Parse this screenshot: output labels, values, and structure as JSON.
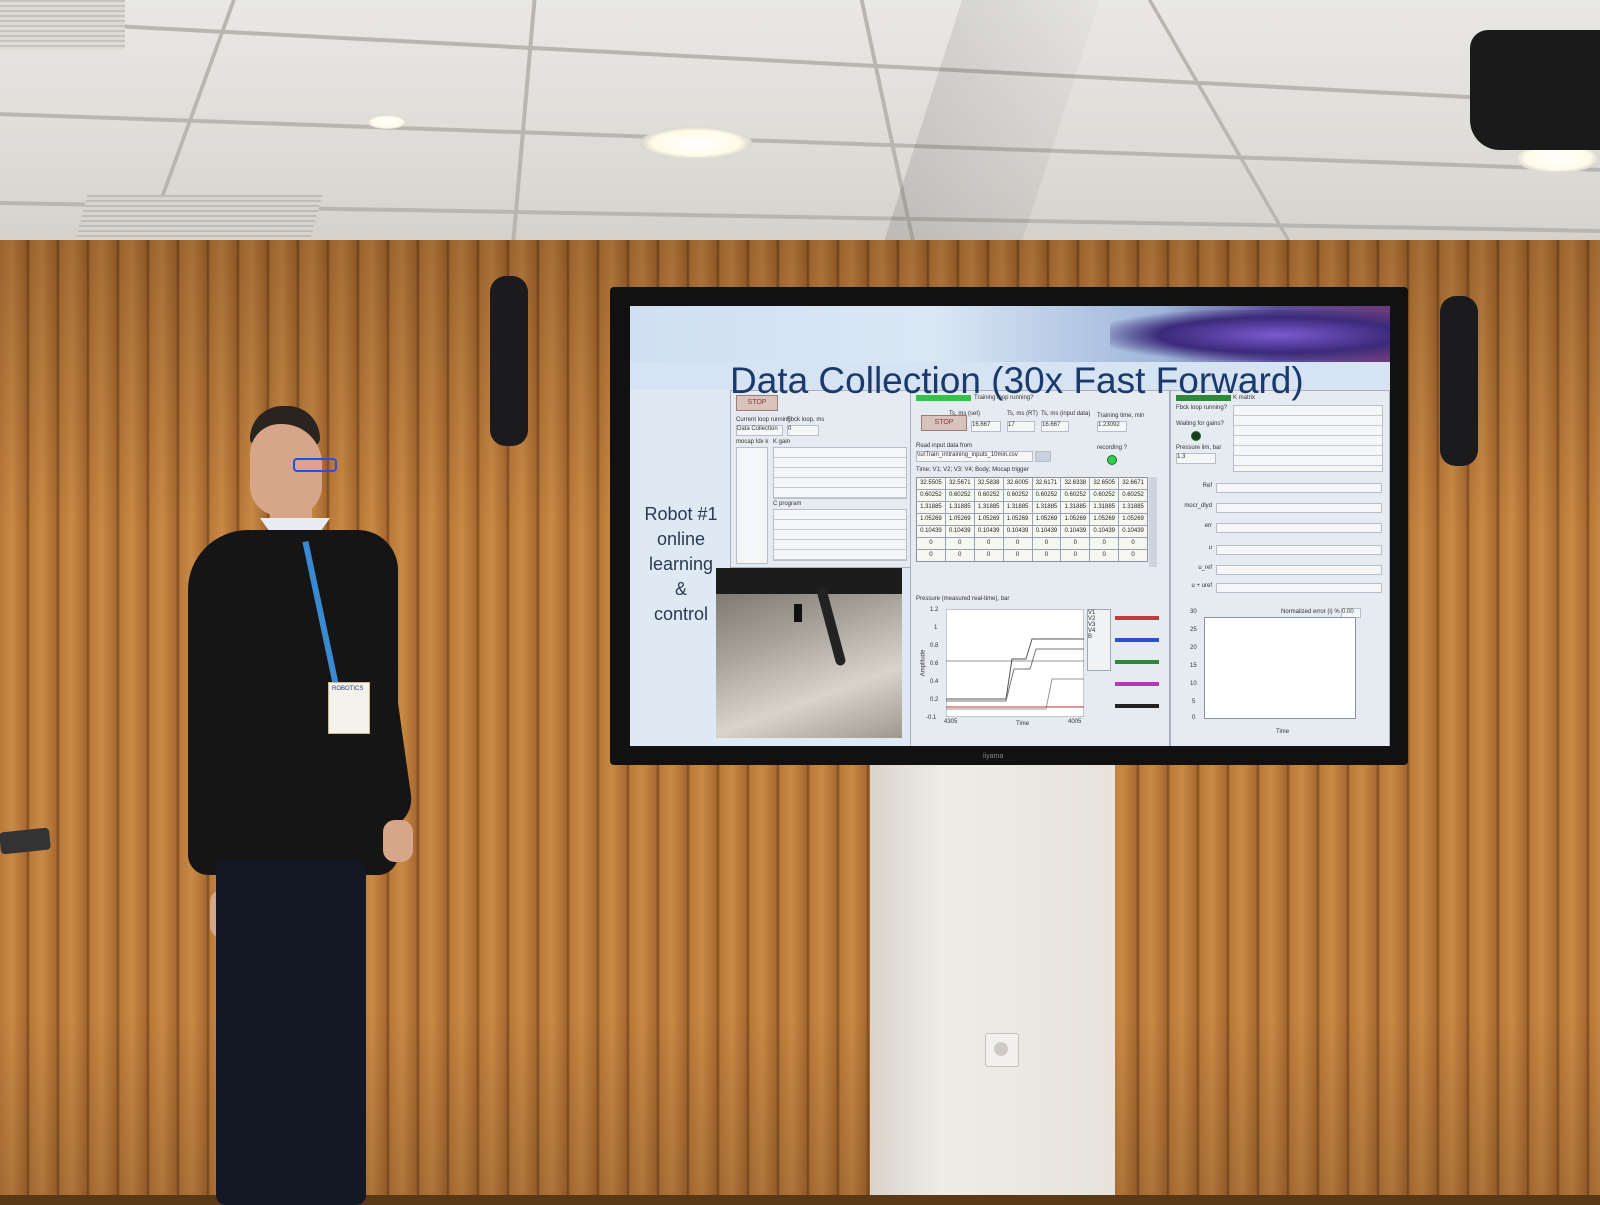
{
  "slide": {
    "title": "Data Collection (30x Fast Forward)",
    "side_label": [
      "Robot #1",
      "online",
      "learning",
      "&",
      "control"
    ]
  },
  "labview": {
    "stop_label": "STOP",
    "training_loop_label": "Training loop running?",
    "ts_set_label": "Ts, ms (set)",
    "ts_set_value": "16.667",
    "ts_rt_label": "Ts, ms (RT)",
    "ts_rt_value": "17",
    "ts_input_label": "Ts, ms (input data)",
    "ts_input_value": "16.667",
    "training_time_label": "Training time, min",
    "training_time_value": "1.23092",
    "read_input_label": "Read input data from",
    "file_path": "\\\\u\\Train_in\\training_inputs_10min.csv",
    "recording_label": "recording ?",
    "columns_label": "Time; V1; V2; V3; V4; Body; Mocap trigger",
    "table_rows": [
      [
        "32.5505",
        "32.5671",
        "32.5838",
        "32.6005",
        "32.6171",
        "32.6338",
        "32.6505",
        "32.6671"
      ],
      [
        "0.60252",
        "0.60252",
        "0.60252",
        "0.60252",
        "0.60252",
        "0.60252",
        "0.60252",
        "0.60252"
      ],
      [
        "1.31885",
        "1.31885",
        "1.31885",
        "1.31885",
        "1.31885",
        "1.31885",
        "1.31885",
        "1.31885"
      ],
      [
        "1.05269",
        "1.05269",
        "1.05269",
        "1.05269",
        "1.05269",
        "1.05269",
        "1.05269",
        "1.05269"
      ],
      [
        "0.10439",
        "0.10439",
        "0.10439",
        "0.10439",
        "0.10439",
        "0.10439",
        "0.10439",
        "0.10439"
      ],
      [
        "0",
        "0",
        "0",
        "0",
        "0",
        "0",
        "0",
        "0"
      ],
      [
        "0",
        "0",
        "0",
        "0",
        "0",
        "0",
        "0",
        "0"
      ]
    ],
    "pressure_chart_title": "Pressure (measured real-time), bar",
    "pressure_y_label": "Amplitude",
    "pressure_ticks": [
      "1.2",
      "1",
      "0.8",
      "0.6",
      "0.4",
      "0.2",
      "-0.1"
    ],
    "pressure_x_start": "4305",
    "pressure_x_end": "4005",
    "pressure_x_label": "Time",
    "legend": [
      "V1",
      "V2",
      "V3",
      "V4",
      "B"
    ],
    "k_matrix_label": "K matrix",
    "fbck_loop_label": "Fbck loop running?",
    "waiting_gains_label": "Waiting for gains?",
    "pressure_lim_label": "Pressure lim, bar",
    "pressure_lim_value": "1.3",
    "right_rows": [
      "Ref",
      "mocr_dlyd",
      "err",
      "u",
      "u_ref",
      "u + uref"
    ],
    "normalized_error_label": "Normalized error (i) %",
    "normalized_error_value": "0.00",
    "right_chart_ticks": [
      "30",
      "25",
      "20",
      "15",
      "10",
      "5",
      "0"
    ],
    "right_chart_x_label": "Time",
    "current_loop_label": "Current loop running",
    "current_loop_value": "Data Collection",
    "fbck_loop_ms_label": "Fbck loop, ms",
    "fbck_loop_ms_value": "0",
    "mocap_label": "mocap Idx k",
    "k_gain_label": "K gain",
    "c_program_label": "C program"
  },
  "tv_brand": "iiyama",
  "badge_text": "ROBOTICS"
}
